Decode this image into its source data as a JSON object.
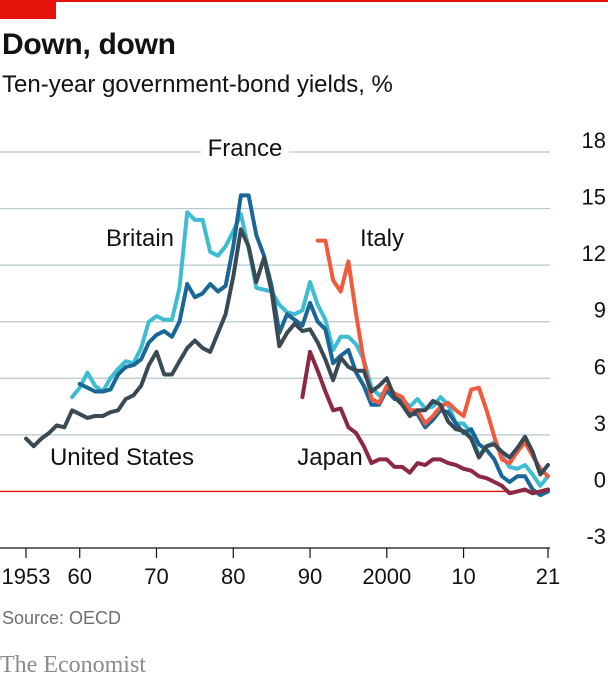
{
  "header": {
    "title": "Down, down",
    "subtitle": "Ten-year government-bond yields, %"
  },
  "footer": {
    "source": "Source: OECD",
    "brand": "The Economist"
  },
  "colors": {
    "accent": "#e3120b",
    "grid": "#b7c6cf",
    "united_states": "#3a4a55",
    "britain": "#3ebcd2",
    "france": "#1a6797",
    "italy": "#f15b3d",
    "japan": "#8b2942"
  },
  "chart_data": {
    "type": "line",
    "title": "Down, down",
    "subtitle": "Ten-year government-bond yields, %",
    "ylim": [
      -3,
      18
    ],
    "y_ticks": [
      18,
      15,
      12,
      9,
      6,
      3,
      0,
      -3
    ],
    "xlim": [
      1953,
      2021
    ],
    "x_ticks": [
      {
        "value": 1953,
        "label": "1953"
      },
      {
        "value": 1960,
        "label": "60"
      },
      {
        "value": 1970,
        "label": "70"
      },
      {
        "value": 1980,
        "label": "80"
      },
      {
        "value": 1990,
        "label": "90"
      },
      {
        "value": 2000,
        "label": "2000"
      },
      {
        "value": 2010,
        "label": "10"
      },
      {
        "value": 2021,
        "label": "21"
      }
    ],
    "y_axis_side": "right",
    "grid": true,
    "series": [
      {
        "name": "Britain",
        "color": "#3ebcd2",
        "x": [
          1959,
          1960,
          1961,
          1962,
          1963,
          1964,
          1965,
          1966,
          1967,
          1968,
          1969,
          1970,
          1971,
          1972,
          1973,
          1974,
          1975,
          1976,
          1977,
          1978,
          1979,
          1980,
          1981,
          1982,
          1983,
          1984,
          1985,
          1986,
          1987,
          1988,
          1989,
          1990,
          1991,
          1992,
          1993,
          1994,
          1995,
          1996,
          1997,
          1998,
          1999,
          2000,
          2001,
          2002,
          2003,
          2004,
          2005,
          2006,
          2007,
          2008,
          2009,
          2010,
          2011,
          2012,
          2013,
          2014,
          2015,
          2016,
          2017,
          2018,
          2019,
          2020,
          2021
        ],
        "y": [
          5.0,
          5.5,
          6.3,
          5.6,
          5.3,
          6.0,
          6.5,
          6.9,
          6.8,
          7.6,
          9.0,
          9.3,
          9.1,
          9.1,
          10.8,
          14.8,
          14.4,
          14.4,
          12.7,
          12.5,
          13.0,
          13.8,
          14.7,
          12.9,
          10.8,
          10.7,
          10.6,
          9.9,
          9.5,
          9.4,
          9.6,
          11.1,
          9.9,
          9.1,
          7.5,
          8.2,
          8.2,
          7.8,
          7.0,
          5.5,
          5.1,
          5.3,
          4.9,
          4.9,
          4.5,
          4.9,
          4.4,
          4.5,
          5.0,
          4.6,
          3.6,
          3.6,
          3.1,
          1.9,
          2.4,
          2.6,
          1.9,
          1.3,
          1.2,
          1.4,
          0.9,
          0.3,
          0.8
        ]
      },
      {
        "name": "France",
        "color": "#1a6797",
        "x": [
          1960,
          1961,
          1962,
          1963,
          1964,
          1965,
          1966,
          1967,
          1968,
          1969,
          1970,
          1971,
          1972,
          1973,
          1974,
          1975,
          1976,
          1977,
          1978,
          1979,
          1980,
          1981,
          1982,
          1983,
          1984,
          1985,
          1986,
          1987,
          1988,
          1989,
          1990,
          1991,
          1992,
          1993,
          1994,
          1995,
          1996,
          1997,
          1998,
          1999,
          2000,
          2001,
          2002,
          2003,
          2004,
          2005,
          2006,
          2007,
          2008,
          2009,
          2010,
          2011,
          2012,
          2013,
          2014,
          2015,
          2016,
          2017,
          2018,
          2019,
          2020,
          2021
        ],
        "y": [
          5.7,
          5.5,
          5.3,
          5.3,
          5.4,
          6.2,
          6.6,
          6.7,
          7.0,
          7.9,
          8.3,
          8.5,
          8.2,
          9.0,
          11.0,
          10.3,
          10.5,
          11.0,
          10.6,
          10.9,
          13.0,
          15.7,
          15.7,
          13.6,
          12.5,
          10.9,
          8.4,
          9.4,
          9.1,
          8.8,
          10.0,
          9.0,
          8.6,
          6.8,
          7.2,
          7.5,
          6.3,
          5.6,
          4.6,
          4.6,
          5.4,
          4.9,
          4.9,
          4.1,
          4.1,
          3.4,
          3.8,
          4.3,
          4.2,
          3.6,
          3.1,
          3.3,
          2.5,
          2.2,
          1.7,
          0.8,
          0.5,
          0.8,
          0.8,
          0.1,
          -0.2,
          0.0
        ]
      },
      {
        "name": "Italy",
        "color": "#f15b3d",
        "x": [
          1991,
          1992,
          1993,
          1994,
          1995,
          1996,
          1997,
          1998,
          1999,
          2000,
          2001,
          2002,
          2003,
          2004,
          2005,
          2006,
          2007,
          2008,
          2009,
          2010,
          2011,
          2012,
          2013,
          2014,
          2015,
          2016,
          2017,
          2018,
          2019,
          2020,
          2021
        ],
        "y": [
          13.3,
          13.3,
          11.2,
          10.6,
          12.2,
          9.4,
          6.9,
          4.9,
          4.7,
          5.6,
          5.2,
          5.0,
          4.3,
          4.3,
          3.6,
          4.0,
          4.5,
          4.7,
          4.3,
          4.0,
          5.4,
          5.5,
          4.3,
          2.9,
          1.7,
          1.5,
          2.1,
          2.6,
          1.9,
          1.2,
          0.8
        ]
      },
      {
        "name": "Japan",
        "color": "#8b2942",
        "x": [
          1989,
          1990,
          1991,
          1992,
          1993,
          1994,
          1995,
          1996,
          1997,
          1998,
          1999,
          2000,
          2001,
          2002,
          2003,
          2004,
          2005,
          2006,
          2007,
          2008,
          2009,
          2010,
          2011,
          2012,
          2013,
          2014,
          2015,
          2016,
          2017,
          2018,
          2019,
          2020,
          2021
        ],
        "y": [
          5.0,
          7.4,
          6.4,
          5.3,
          4.3,
          4.4,
          3.4,
          3.1,
          2.4,
          1.5,
          1.7,
          1.7,
          1.3,
          1.3,
          1.0,
          1.5,
          1.4,
          1.7,
          1.7,
          1.5,
          1.4,
          1.2,
          1.1,
          0.8,
          0.7,
          0.5,
          0.3,
          -0.1,
          0.0,
          0.1,
          -0.1,
          0.0,
          0.1
        ]
      },
      {
        "name": "United States",
        "color": "#3a4a55",
        "x": [
          1953,
          1954,
          1955,
          1956,
          1957,
          1958,
          1959,
          1960,
          1961,
          1962,
          1963,
          1964,
          1965,
          1966,
          1967,
          1968,
          1969,
          1970,
          1971,
          1972,
          1973,
          1974,
          1975,
          1976,
          1977,
          1978,
          1979,
          1980,
          1981,
          1982,
          1983,
          1984,
          1985,
          1986,
          1987,
          1988,
          1989,
          1990,
          1991,
          1992,
          1993,
          1994,
          1995,
          1996,
          1997,
          1998,
          1999,
          2000,
          2001,
          2002,
          2003,
          2004,
          2005,
          2006,
          2007,
          2008,
          2009,
          2010,
          2011,
          2012,
          2013,
          2014,
          2015,
          2016,
          2017,
          2018,
          2019,
          2020,
          2021
        ],
        "y": [
          2.8,
          2.4,
          2.8,
          3.1,
          3.5,
          3.4,
          4.3,
          4.1,
          3.9,
          4.0,
          4.0,
          4.2,
          4.3,
          4.9,
          5.1,
          5.6,
          6.7,
          7.4,
          6.2,
          6.2,
          6.9,
          7.6,
          8.0,
          7.6,
          7.4,
          8.4,
          9.4,
          11.4,
          13.9,
          13.0,
          11.1,
          12.4,
          10.6,
          7.7,
          8.4,
          8.9,
          8.5,
          8.6,
          7.9,
          7.0,
          5.9,
          7.1,
          6.6,
          6.4,
          6.4,
          5.3,
          5.6,
          6.0,
          5.0,
          4.6,
          4.0,
          4.3,
          4.3,
          4.8,
          4.6,
          3.7,
          3.3,
          3.2,
          2.8,
          1.8,
          2.4,
          2.5,
          2.1,
          1.8,
          2.3,
          2.9,
          2.1,
          0.9,
          1.4
        ]
      }
    ],
    "annotations": [
      {
        "series": "France",
        "text": "France"
      },
      {
        "series": "Britain",
        "text": "Britain"
      },
      {
        "series": "Italy",
        "text": "Italy"
      },
      {
        "series": "United States",
        "text": "United States"
      },
      {
        "series": "Japan",
        "text": "Japan"
      }
    ]
  }
}
